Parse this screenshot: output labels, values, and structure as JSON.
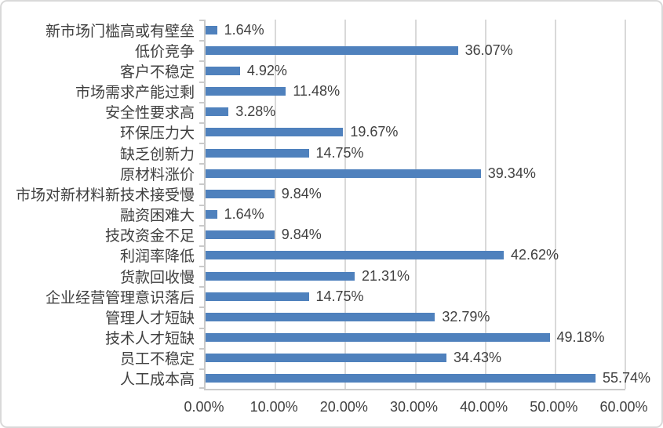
{
  "chart_data": {
    "type": "bar",
    "orientation": "horizontal",
    "title": "",
    "xlabel": "",
    "ylabel": "",
    "xlim": [
      0,
      60
    ],
    "grid": true,
    "legend": false,
    "x_tick_labels": [
      "0.00%",
      "10.00%",
      "20.00%",
      "30.00%",
      "40.00%",
      "50.00%",
      "60.00%"
    ],
    "x_tick_values": [
      0,
      10,
      20,
      30,
      40,
      50,
      60
    ],
    "categories": [
      "新市场门槛高或有壁垒",
      "低价竞争",
      "客户不稳定",
      "市场需求产能过剩",
      "安全性要求高",
      "环保压力大",
      "缺乏创新力",
      "原材料涨价",
      "市场对新材料新技术接受慢",
      "融资困难大",
      "技改资金不足",
      "利润率降低",
      "货款回收慢",
      "企业经营管理意识落后",
      "管理人才短缺",
      "技术人才短缺",
      "员工不稳定",
      "人工成本高"
    ],
    "values": [
      1.64,
      36.07,
      4.92,
      11.48,
      3.28,
      19.67,
      14.75,
      39.34,
      9.84,
      1.64,
      9.84,
      42.62,
      21.31,
      14.75,
      32.79,
      49.18,
      34.43,
      55.74
    ],
    "data_labels": [
      "1.64%",
      "36.07%",
      "4.92%",
      "11.48%",
      "3.28%",
      "19.67%",
      "14.75%",
      "39.34%",
      "9.84%",
      "1.64%",
      "9.84%",
      "42.62%",
      "21.31%",
      "14.75%",
      "32.79%",
      "49.18%",
      "34.43%",
      "55.74%"
    ],
    "colors": {
      "bar": "#4F81BD",
      "gridline": "#D9D9D9",
      "axis": "#C9C9C9",
      "text": "#404040",
      "background": "#FFFFFF",
      "border": "#D9D9D9"
    }
  }
}
